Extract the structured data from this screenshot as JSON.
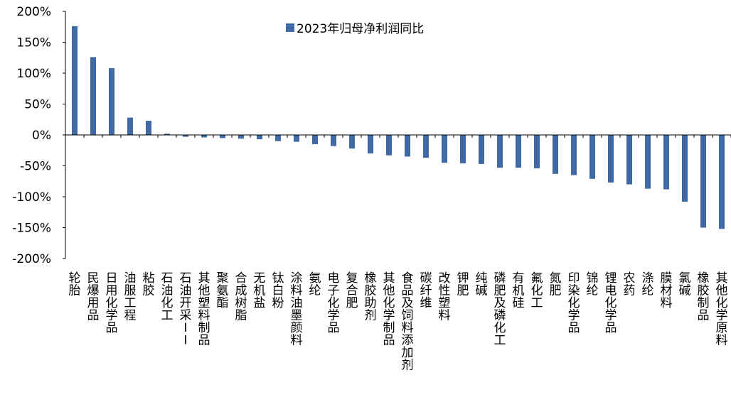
{
  "chart_data": {
    "type": "bar",
    "title": "",
    "xlabel": "",
    "ylabel": "",
    "ylim": [
      -200,
      200
    ],
    "yticks": [
      200,
      150,
      100,
      50,
      0,
      -50,
      -100,
      -150,
      -200
    ],
    "ytick_labels": [
      "200%",
      "150%",
      "100%",
      "50%",
      "0%",
      "-50%",
      "-100%",
      "-150%",
      "-200%"
    ],
    "legend_position": "top-center",
    "bar_color": "#3f6aa6",
    "categories": [
      "轮胎",
      "民爆用品",
      "日用化学品",
      "油服工程",
      "粘胶",
      "石油化工",
      "石油开采II",
      "其他塑料制品",
      "聚氨酯",
      "合成树脂",
      "无机盐",
      "钛白粉",
      "涂料油墨颜料",
      "氨纶",
      "电子化学品",
      "复合肥",
      "橡胶助剂",
      "其他化学制品",
      "食品及饲料添加剂",
      "碳纤维",
      "改性塑料",
      "钾肥",
      "纯碱",
      "磷肥及磷化工",
      "有机硅",
      "氟化工",
      "氮肥",
      "印染化学品",
      "锦纶",
      "锂电化学品",
      "农药",
      "涤纶",
      "膜材料",
      "氯碱",
      "橡胶制品",
      "其他化学原料"
    ],
    "series": [
      {
        "name": "2023年归母净利润同比",
        "values": [
          176,
          126,
          108,
          28,
          23,
          2,
          -3,
          -4,
          -5,
          -6,
          -7,
          -10,
          -11,
          -15,
          -18,
          -22,
          -30,
          -33,
          -35,
          -37,
          -45,
          -46,
          -47,
          -53,
          -53,
          -54,
          -63,
          -65,
          -71,
          -77,
          -80,
          -87,
          -88,
          -108,
          -150,
          -152
        ]
      }
    ]
  }
}
